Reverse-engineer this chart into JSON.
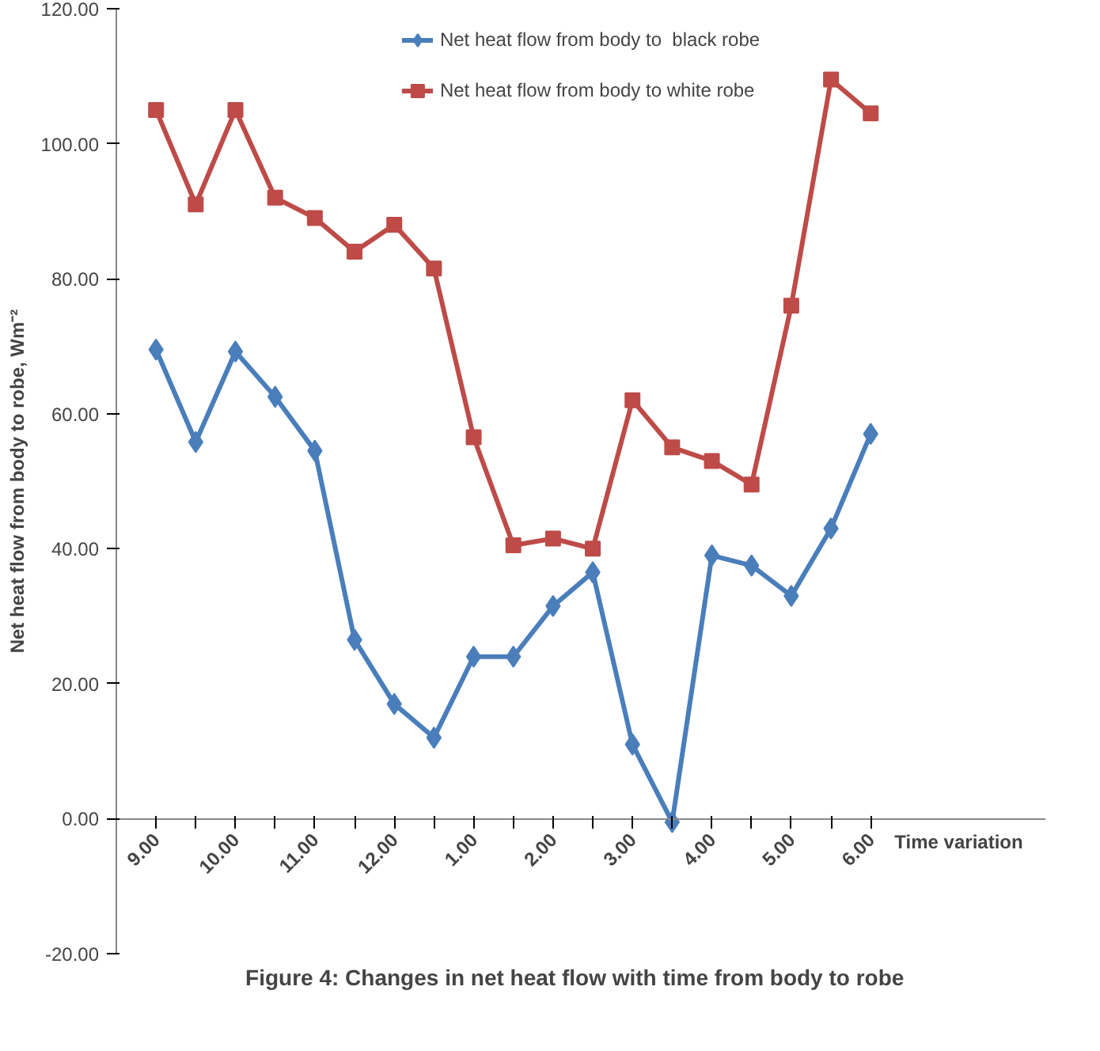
{
  "chart_data": {
    "type": "line",
    "title": "Figure 4: Changes in net heat flow with time  from  body to robe",
    "xlabel": "Time variation",
    "ylabel": "Net heat flow from body to robe, Wm⁻²",
    "categories": [
      "9.00",
      null,
      "10.00",
      null,
      "11.00",
      null,
      "12.00",
      null,
      "1.00",
      null,
      "2.00",
      null,
      "3.00",
      null,
      "4.00",
      null,
      "5.00",
      null,
      "6.00"
    ],
    "series": [
      {
        "name": "Net heat flow from body to  black robe",
        "color": "#4a7ebb",
        "marker": "diamond",
        "values": [
          69.5,
          55.8,
          69.2,
          62.5,
          54.5,
          26.5,
          17,
          12,
          24,
          24,
          31.5,
          36.5,
          11,
          -0.5,
          39,
          37.5,
          33,
          43,
          57
        ]
      },
      {
        "name": "Net heat flow from body to white robe",
        "color": "#be4b48",
        "marker": "square",
        "values": [
          105,
          91,
          105,
          92,
          89,
          84,
          88,
          81.5,
          56.5,
          40.5,
          41.5,
          40,
          62,
          55,
          53,
          49.5,
          76,
          109.5,
          104.5
        ]
      }
    ],
    "ylim": [
      -20,
      120
    ],
    "yticks": [
      {
        "value": -20,
        "label": "-20.00"
      },
      {
        "value": 0,
        "label": "0.00"
      },
      {
        "value": 20,
        "label": "20.00"
      },
      {
        "value": 40,
        "label": "40.00"
      },
      {
        "value": 60,
        "label": "60.00"
      },
      {
        "value": 80,
        "label": "80.00"
      },
      {
        "value": 100,
        "label": "100.00"
      },
      {
        "value": 120,
        "label": "120.00"
      }
    ],
    "grid": false,
    "legend": "top",
    "line_style": "solid"
  }
}
